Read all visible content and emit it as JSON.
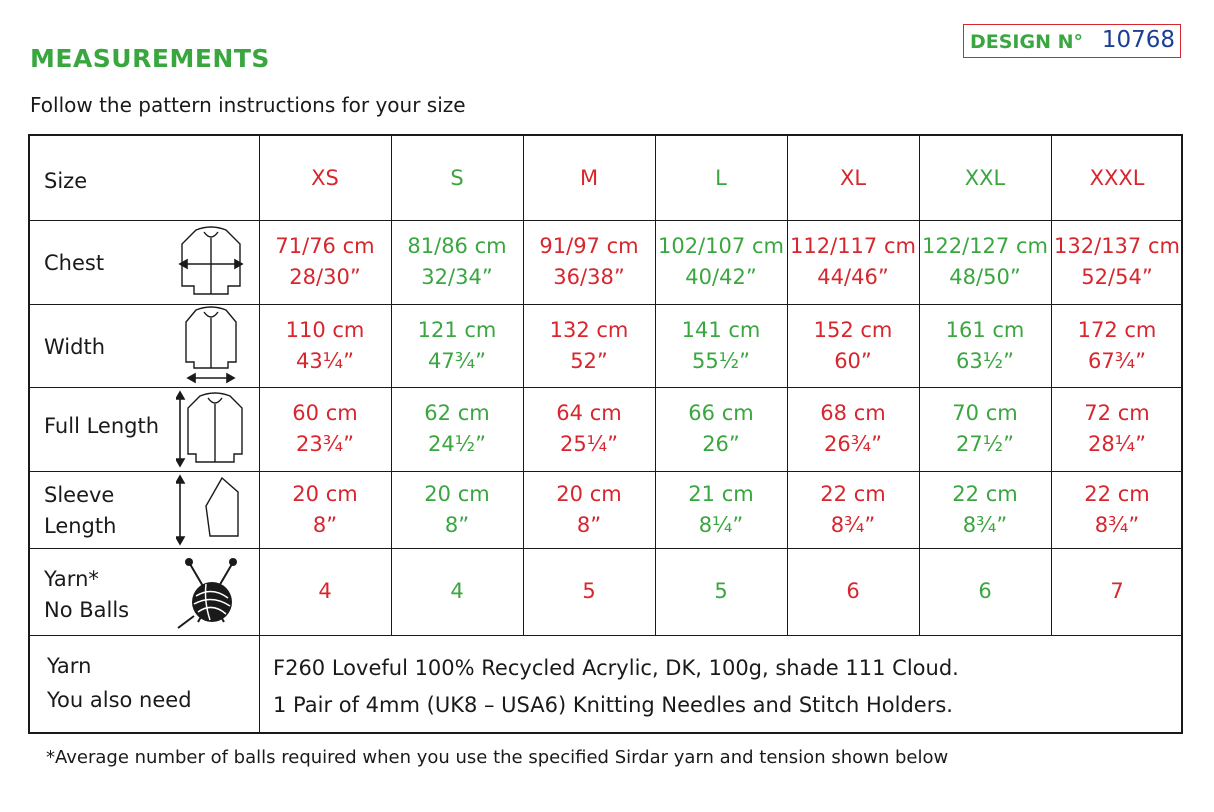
{
  "header": {
    "title": "MEASUREMENTS",
    "design_label": "DESIGN N°",
    "design_number": "10768",
    "subtitle": "Follow the pattern instructions for your size"
  },
  "colors": {
    "red": "#d7262d",
    "green": "#3aa63f",
    "blue": "#1b3f95",
    "text": "#1a1a1a"
  },
  "table": {
    "size_label": "Size",
    "sizes": [
      "XS",
      "S",
      "M",
      "L",
      "XL",
      "XXL",
      "XXXL"
    ],
    "rows": [
      {
        "label_lines": [
          "Chest"
        ],
        "icon": "chest-measure-icon",
        "values": [
          [
            "71/76 cm",
            "28/30”"
          ],
          [
            "81/86 cm",
            "32/34”"
          ],
          [
            "91/97 cm",
            "36/38”"
          ],
          [
            "102/107 cm",
            "40/42”"
          ],
          [
            "112/117 cm",
            "44/46”"
          ],
          [
            "122/127 cm",
            "48/50”"
          ],
          [
            "132/137 cm",
            "52/54”"
          ]
        ]
      },
      {
        "label_lines": [
          "Width"
        ],
        "icon": "width-measure-icon",
        "values": [
          [
            "110 cm",
            "43¼”"
          ],
          [
            "121 cm",
            "47¾”"
          ],
          [
            "132 cm",
            "52”"
          ],
          [
            "141 cm",
            "55½”"
          ],
          [
            "152 cm",
            "60”"
          ],
          [
            "161 cm",
            "63½”"
          ],
          [
            "172 cm",
            "67¾”"
          ]
        ]
      },
      {
        "label_lines": [
          "Full Length"
        ],
        "icon": "full-length-measure-icon",
        "values": [
          [
            "60 cm",
            "23¾”"
          ],
          [
            "62 cm",
            "24½”"
          ],
          [
            "64 cm",
            "25¼”"
          ],
          [
            "66 cm",
            "26”"
          ],
          [
            "68 cm",
            "26¾”"
          ],
          [
            "70 cm",
            "27½”"
          ],
          [
            "72 cm",
            "28¼”"
          ]
        ]
      },
      {
        "label_lines": [
          "Sleeve",
          "Length"
        ],
        "icon": "sleeve-length-measure-icon",
        "values": [
          [
            "20 cm",
            "8”"
          ],
          [
            "20 cm",
            "8”"
          ],
          [
            "20 cm",
            "8”"
          ],
          [
            "21 cm",
            "8¼”"
          ],
          [
            "22 cm",
            "8¾”"
          ],
          [
            "22 cm",
            "8¾”"
          ],
          [
            "22 cm",
            "8¾”"
          ]
        ]
      },
      {
        "label_lines": [
          "Yarn*",
          " No Balls"
        ],
        "icon": "yarn-ball-icon",
        "values": [
          [
            "4"
          ],
          [
            "4"
          ],
          [
            "5"
          ],
          [
            "5"
          ],
          [
            "6"
          ],
          [
            "6"
          ],
          [
            "7"
          ]
        ]
      }
    ],
    "info": {
      "yarn_label": "Yarn",
      "need_label": "You also need",
      "yarn_text": "F260 Loveful 100% Recycled Acrylic, DK, 100g, shade 111 Cloud.",
      "need_text": "1 Pair of 4mm (UK8 – USA6) Knitting Needles and Stitch Holders."
    }
  },
  "footnote": "*Average number of balls required when you use the specified Sirdar yarn and tension shown below"
}
